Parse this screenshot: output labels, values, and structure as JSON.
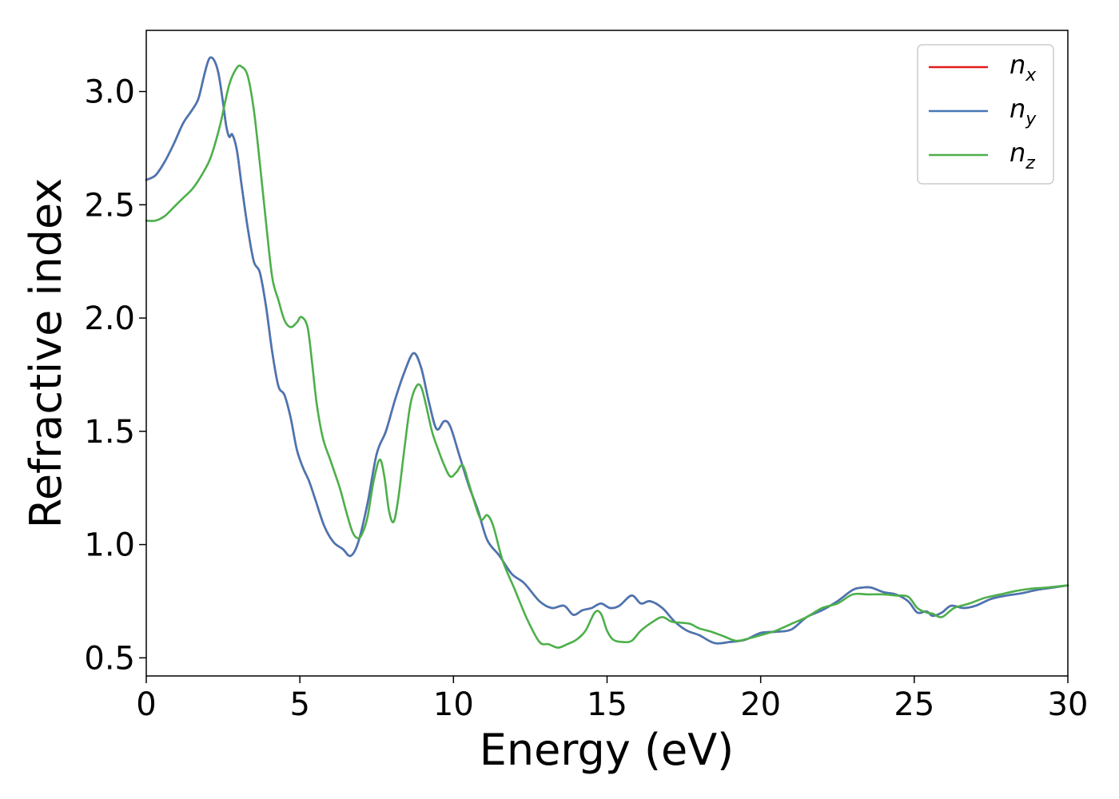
{
  "chart_data": {
    "type": "line",
    "title": "",
    "xlabel": "Energy (eV)",
    "ylabel": "Refractive index",
    "xlim": [
      0,
      30
    ],
    "ylim": [
      0.42,
      3.27
    ],
    "xticks": [
      0,
      5,
      10,
      15,
      20,
      25,
      30
    ],
    "xtick_labels": [
      "0",
      "5",
      "10",
      "15",
      "20",
      "25",
      "30"
    ],
    "yticks": [
      0.5,
      1.0,
      1.5,
      2.0,
      2.5,
      3.0
    ],
    "ytick_labels": [
      "0.5",
      "1.0",
      "1.5",
      "2.0",
      "2.5",
      "3.0"
    ],
    "grid": false,
    "legend_position": "top-right",
    "series": [
      {
        "name": "n_x",
        "label_base": "n",
        "label_sub": "x",
        "color": "#e41a1c",
        "x": [
          0,
          0.3,
          0.6,
          0.9,
          1.2,
          1.5,
          1.7,
          1.9,
          2.05,
          2.2,
          2.35,
          2.5,
          2.6,
          2.7,
          2.8,
          2.95,
          3.1,
          3.3,
          3.5,
          3.7,
          3.9,
          4.1,
          4.3,
          4.5,
          4.7,
          4.9,
          5.1,
          5.3,
          5.5,
          5.8,
          6.1,
          6.4,
          6.65,
          6.9,
          7.2,
          7.5,
          7.8,
          8.1,
          8.4,
          8.7,
          8.95,
          9.2,
          9.45,
          9.7,
          9.9,
          10.2,
          10.5,
          10.8,
          11.1,
          11.5,
          11.9,
          12.3,
          12.8,
          13.2,
          13.6,
          13.9,
          14.2,
          14.5,
          14.8,
          15.1,
          15.4,
          15.8,
          16.1,
          16.4,
          16.8,
          17.2,
          17.6,
          18.0,
          18.5,
          19.0,
          19.5,
          20.0,
          20.5,
          21.0,
          21.5,
          22.0,
          22.5,
          23.0,
          23.3,
          23.6,
          24.0,
          24.4,
          24.8,
          25.1,
          25.4,
          25.6,
          25.9,
          26.2,
          26.6,
          27.0,
          27.5,
          28.0,
          28.5,
          29.0,
          29.5,
          30.0
        ],
        "y": [
          2.61,
          2.63,
          2.69,
          2.77,
          2.86,
          2.92,
          2.97,
          3.08,
          3.145,
          3.14,
          3.08,
          2.95,
          2.85,
          2.8,
          2.81,
          2.74,
          2.59,
          2.4,
          2.25,
          2.2,
          2.05,
          1.85,
          1.7,
          1.66,
          1.56,
          1.42,
          1.34,
          1.28,
          1.2,
          1.08,
          1.01,
          0.98,
          0.95,
          1.01,
          1.18,
          1.4,
          1.5,
          1.64,
          1.76,
          1.845,
          1.78,
          1.63,
          1.51,
          1.545,
          1.52,
          1.39,
          1.26,
          1.15,
          1.02,
          0.95,
          0.87,
          0.83,
          0.75,
          0.72,
          0.73,
          0.69,
          0.71,
          0.72,
          0.74,
          0.72,
          0.73,
          0.775,
          0.74,
          0.75,
          0.72,
          0.66,
          0.62,
          0.6,
          0.565,
          0.57,
          0.58,
          0.61,
          0.615,
          0.625,
          0.68,
          0.71,
          0.75,
          0.8,
          0.81,
          0.81,
          0.79,
          0.78,
          0.75,
          0.7,
          0.705,
          0.685,
          0.7,
          0.73,
          0.72,
          0.73,
          0.76,
          0.775,
          0.785,
          0.8,
          0.81,
          0.82
        ]
      },
      {
        "name": "n_y",
        "label_base": "n",
        "label_sub": "y",
        "color": "#4677b4",
        "x": [
          0,
          0.3,
          0.6,
          0.9,
          1.2,
          1.5,
          1.7,
          1.9,
          2.05,
          2.2,
          2.35,
          2.5,
          2.6,
          2.7,
          2.8,
          2.95,
          3.1,
          3.3,
          3.5,
          3.7,
          3.9,
          4.1,
          4.3,
          4.5,
          4.7,
          4.9,
          5.1,
          5.3,
          5.5,
          5.8,
          6.1,
          6.4,
          6.65,
          6.9,
          7.2,
          7.5,
          7.8,
          8.1,
          8.4,
          8.7,
          8.95,
          9.2,
          9.45,
          9.7,
          9.9,
          10.2,
          10.5,
          10.8,
          11.1,
          11.5,
          11.9,
          12.3,
          12.8,
          13.2,
          13.6,
          13.9,
          14.2,
          14.5,
          14.8,
          15.1,
          15.4,
          15.8,
          16.1,
          16.4,
          16.8,
          17.2,
          17.6,
          18.0,
          18.5,
          19.0,
          19.5,
          20.0,
          20.5,
          21.0,
          21.5,
          22.0,
          22.5,
          23.0,
          23.3,
          23.6,
          24.0,
          24.4,
          24.8,
          25.1,
          25.4,
          25.6,
          25.9,
          26.2,
          26.6,
          27.0,
          27.5,
          28.0,
          28.5,
          29.0,
          29.5,
          30.0
        ],
        "y": [
          2.61,
          2.63,
          2.69,
          2.77,
          2.86,
          2.92,
          2.97,
          3.08,
          3.145,
          3.14,
          3.08,
          2.95,
          2.85,
          2.8,
          2.81,
          2.74,
          2.59,
          2.4,
          2.25,
          2.2,
          2.05,
          1.85,
          1.7,
          1.66,
          1.56,
          1.42,
          1.34,
          1.28,
          1.2,
          1.08,
          1.01,
          0.98,
          0.95,
          1.01,
          1.18,
          1.4,
          1.5,
          1.64,
          1.76,
          1.845,
          1.78,
          1.63,
          1.51,
          1.545,
          1.52,
          1.39,
          1.26,
          1.15,
          1.02,
          0.95,
          0.87,
          0.83,
          0.75,
          0.72,
          0.73,
          0.69,
          0.71,
          0.72,
          0.74,
          0.72,
          0.73,
          0.775,
          0.74,
          0.75,
          0.72,
          0.66,
          0.62,
          0.6,
          0.565,
          0.57,
          0.58,
          0.61,
          0.615,
          0.625,
          0.68,
          0.71,
          0.75,
          0.8,
          0.81,
          0.81,
          0.79,
          0.78,
          0.75,
          0.7,
          0.705,
          0.685,
          0.7,
          0.73,
          0.72,
          0.73,
          0.76,
          0.775,
          0.785,
          0.8,
          0.81,
          0.82
        ]
      },
      {
        "name": "n_z",
        "label_base": "n",
        "label_sub": "z",
        "color": "#4daf4a",
        "x": [
          0,
          0.3,
          0.6,
          0.9,
          1.2,
          1.5,
          1.8,
          2.1,
          2.4,
          2.7,
          2.95,
          3.1,
          3.3,
          3.5,
          3.7,
          3.9,
          4.1,
          4.3,
          4.5,
          4.7,
          4.9,
          5.05,
          5.25,
          5.4,
          5.55,
          5.75,
          6.0,
          6.3,
          6.5,
          6.7,
          6.85,
          7.0,
          7.2,
          7.4,
          7.6,
          7.75,
          7.9,
          8.05,
          8.2,
          8.4,
          8.6,
          8.8,
          8.95,
          9.1,
          9.3,
          9.5,
          9.7,
          9.9,
          10.1,
          10.3,
          10.5,
          10.7,
          10.9,
          11.1,
          11.3,
          11.6,
          12.0,
          12.4,
          12.8,
          13.1,
          13.4,
          13.7,
          14.0,
          14.3,
          14.6,
          14.8,
          15.0,
          15.2,
          15.5,
          15.8,
          16.1,
          16.5,
          16.8,
          17.1,
          17.4,
          17.7,
          18.0,
          18.4,
          18.8,
          19.2,
          19.6,
          20.0,
          20.5,
          21.0,
          21.5,
          22.0,
          22.5,
          23.0,
          23.5,
          24.0,
          24.4,
          24.8,
          25.1,
          25.4,
          25.6,
          25.9,
          26.3,
          26.8,
          27.3,
          27.8,
          28.3,
          28.8,
          29.3,
          30.0
        ],
        "y": [
          2.43,
          2.43,
          2.45,
          2.49,
          2.53,
          2.57,
          2.63,
          2.71,
          2.85,
          3.03,
          3.105,
          3.11,
          3.07,
          2.92,
          2.68,
          2.42,
          2.18,
          2.08,
          1.99,
          1.96,
          1.98,
          2.005,
          1.96,
          1.8,
          1.62,
          1.47,
          1.37,
          1.25,
          1.15,
          1.06,
          1.03,
          1.04,
          1.12,
          1.28,
          1.375,
          1.3,
          1.15,
          1.1,
          1.2,
          1.42,
          1.62,
          1.7,
          1.695,
          1.62,
          1.5,
          1.42,
          1.35,
          1.3,
          1.32,
          1.35,
          1.27,
          1.18,
          1.11,
          1.13,
          1.08,
          0.93,
          0.8,
          0.67,
          0.57,
          0.56,
          0.545,
          0.56,
          0.58,
          0.62,
          0.7,
          0.695,
          0.62,
          0.58,
          0.57,
          0.575,
          0.62,
          0.66,
          0.68,
          0.66,
          0.655,
          0.65,
          0.63,
          0.615,
          0.595,
          0.575,
          0.585,
          0.6,
          0.62,
          0.65,
          0.68,
          0.72,
          0.74,
          0.78,
          0.78,
          0.78,
          0.775,
          0.77,
          0.72,
          0.7,
          0.695,
          0.68,
          0.72,
          0.74,
          0.765,
          0.78,
          0.795,
          0.805,
          0.81,
          0.82
        ]
      }
    ]
  }
}
